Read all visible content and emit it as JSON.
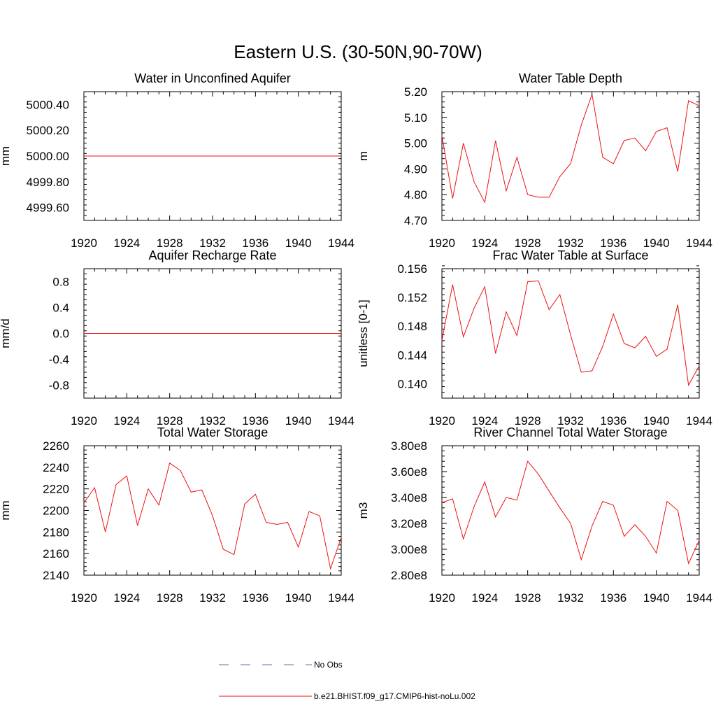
{
  "figure": {
    "title": "Eastern U.S. (30-50N,90-70W)"
  },
  "legend": {
    "entries": [
      {
        "label": "No Obs",
        "color": "#6a6ab5",
        "dashed": true
      },
      {
        "label": "b.e21.BHIST.f09_g17.CMIP6-hist-noLu.002",
        "color": "#ee1111",
        "dashed": false
      }
    ]
  },
  "chart_data": [
    {
      "type": "line",
      "title": "Water in Unconfined Aquifer",
      "ylabel": "mm",
      "xlim": [
        1920,
        1944
      ],
      "ylim": [
        4999.5,
        5000.5
      ],
      "xticks": [
        "1920",
        "1924",
        "1928",
        "1932",
        "1936",
        "1940",
        "1944"
      ],
      "yticks": [
        "4999.60",
        "4999.80",
        "5000.00",
        "5000.20",
        "5000.40"
      ],
      "series": [
        {
          "color": "#ee1111",
          "x": [
            1920,
            1921,
            1922,
            1923,
            1924,
            1925,
            1926,
            1927,
            1928,
            1929,
            1930,
            1931,
            1932,
            1933,
            1934,
            1935,
            1936,
            1937,
            1938,
            1939,
            1940,
            1941,
            1942,
            1943,
            1944
          ],
          "values": [
            5000,
            5000,
            5000,
            5000,
            5000,
            5000,
            5000,
            5000,
            5000,
            5000,
            5000,
            5000,
            5000,
            5000,
            5000,
            5000,
            5000,
            5000,
            5000,
            5000,
            5000,
            5000,
            5000,
            5000,
            5000
          ]
        }
      ]
    },
    {
      "type": "line",
      "title": "Water Table Depth",
      "ylabel": "m",
      "xlim": [
        1920,
        1944
      ],
      "ylim": [
        4.7,
        5.2
      ],
      "xticks": [
        "1920",
        "1924",
        "1928",
        "1932",
        "1936",
        "1940",
        "1944"
      ],
      "yticks": [
        "4.70",
        "4.80",
        "4.90",
        "5.00",
        "5.10",
        "5.20"
      ],
      "series": [
        {
          "color": "#ee1111",
          "x": [
            1920,
            1921,
            1922,
            1923,
            1924,
            1925,
            1926,
            1927,
            1928,
            1929,
            1930,
            1931,
            1932,
            1933,
            1934,
            1935,
            1936,
            1937,
            1938,
            1939,
            1940,
            1941,
            1942,
            1943,
            1944
          ],
          "values": [
            5.03,
            4.785,
            5.0,
            4.85,
            4.77,
            5.01,
            4.815,
            4.945,
            4.8,
            4.79,
            4.79,
            4.87,
            4.92,
            5.07,
            5.19,
            4.945,
            4.92,
            5.01,
            5.02,
            4.97,
            5.045,
            5.06,
            4.89,
            5.165,
            5.145
          ]
        }
      ]
    },
    {
      "type": "line",
      "title": "Aquifer Recharge Rate",
      "ylabel": "mm/d",
      "xlim": [
        1920,
        1944
      ],
      "ylim": [
        -1.0,
        1.0
      ],
      "xticks": [
        "1920",
        "1924",
        "1928",
        "1932",
        "1936",
        "1940",
        "1944"
      ],
      "yticks": [
        "-0.8",
        "-0.4",
        "0.0",
        "0.4",
        "0.8"
      ],
      "series": [
        {
          "color": "#ee1111",
          "x": [
            1920,
            1921,
            1922,
            1923,
            1924,
            1925,
            1926,
            1927,
            1928,
            1929,
            1930,
            1931,
            1932,
            1933,
            1934,
            1935,
            1936,
            1937,
            1938,
            1939,
            1940,
            1941,
            1942,
            1943,
            1944
          ],
          "values": [
            0,
            0,
            0,
            0,
            0,
            0,
            0,
            0,
            0,
            0,
            0,
            0,
            0,
            0,
            0,
            0,
            0,
            0,
            0,
            0,
            0,
            0,
            0,
            0,
            0
          ]
        }
      ]
    },
    {
      "type": "line",
      "title": "Frac Water Table at Surface",
      "ylabel": "unitless [0-1]",
      "xlim": [
        1920,
        1944
      ],
      "ylim": [
        0.138,
        0.156
      ],
      "xticks": [
        "1920",
        "1924",
        "1928",
        "1932",
        "1936",
        "1940",
        "1944"
      ],
      "yticks": [
        "0.140",
        "0.144",
        "0.148",
        "0.152",
        "0.156"
      ],
      "series": [
        {
          "color": "#ee1111",
          "x": [
            1920,
            1921,
            1922,
            1923,
            1924,
            1925,
            1926,
            1927,
            1928,
            1929,
            1930,
            1931,
            1932,
            1933,
            1934,
            1935,
            1936,
            1937,
            1938,
            1939,
            1940,
            1941,
            1942,
            1943,
            1944
          ],
          "values": [
            0.146,
            0.1538,
            0.1465,
            0.1505,
            0.1535,
            0.1442,
            0.15,
            0.1467,
            0.1542,
            0.1543,
            0.1503,
            0.1524,
            0.1468,
            0.1416,
            0.1418,
            0.1452,
            0.1497,
            0.1456,
            0.145,
            0.1466,
            0.1438,
            0.1448,
            0.151,
            0.1398,
            0.1425
          ]
        }
      ]
    },
    {
      "type": "line",
      "title": "Total Water Storage",
      "ylabel": "mm",
      "xlim": [
        1920,
        1944
      ],
      "ylim": [
        2140,
        2260
      ],
      "xticks": [
        "1920",
        "1924",
        "1928",
        "1932",
        "1936",
        "1940",
        "1944"
      ],
      "yticks": [
        "2140",
        "2160",
        "2180",
        "2200",
        "2220",
        "2240",
        "2260"
      ],
      "series": [
        {
          "color": "#ee1111",
          "x": [
            1920,
            1921,
            1922,
            1923,
            1924,
            1925,
            1926,
            1927,
            1928,
            1929,
            1930,
            1931,
            1932,
            1933,
            1934,
            1935,
            1936,
            1937,
            1938,
            1939,
            1940,
            1941,
            1942,
            1943,
            1944
          ],
          "values": [
            2207,
            2221,
            2180,
            2224,
            2232,
            2186,
            2220,
            2205,
            2244,
            2237,
            2217,
            2219,
            2195,
            2164,
            2159,
            2206,
            2215,
            2189,
            2187,
            2189,
            2166,
            2199,
            2195,
            2146,
            2175
          ]
        }
      ]
    },
    {
      "type": "line",
      "title": "River Channel Total Water Storage",
      "ylabel": "m3",
      "xlim": [
        1920,
        1944
      ],
      "ylim": [
        280000000.0,
        380000000.0
      ],
      "xticks": [
        "1920",
        "1924",
        "1928",
        "1932",
        "1936",
        "1940",
        "1944"
      ],
      "yticks": [
        "2.80e8",
        "3.00e8",
        "3.20e8",
        "3.40e8",
        "3.60e8",
        "3.80e8"
      ],
      "series": [
        {
          "color": "#ee1111",
          "x": [
            1920,
            1921,
            1922,
            1923,
            1924,
            1925,
            1926,
            1927,
            1928,
            1929,
            1930,
            1931,
            1932,
            1933,
            1934,
            1935,
            1936,
            1937,
            1938,
            1939,
            1940,
            1941,
            1942,
            1943,
            1944
          ],
          "values": [
            336000000,
            339000000,
            308000000,
            333000000,
            352000000,
            325000000,
            340000000,
            338000000,
            368000000,
            358000000,
            345000000,
            332000000,
            320000000,
            292000000,
            318000000,
            337000000,
            334000000,
            310000000,
            319000000,
            310000000,
            297000000,
            337000000,
            330000000,
            289000000,
            307000000
          ]
        }
      ]
    }
  ]
}
